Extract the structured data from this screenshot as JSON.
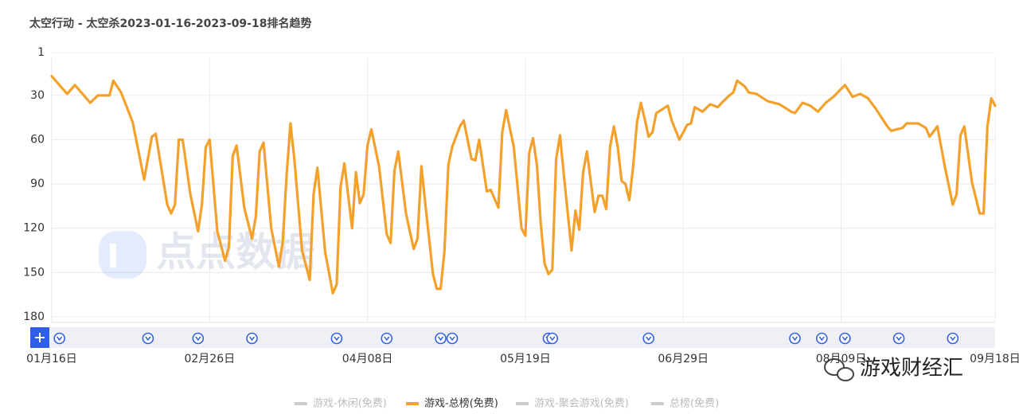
{
  "chart_data": {
    "type": "line",
    "title": "太空行动 - 太空杀2023-01-16-2023-09-18排名趋势",
    "x": [
      "2023-01-16",
      "2023-01-20",
      "2023-01-22",
      "2023-01-26",
      "2023-01-28",
      "2023-01-31",
      "2023-02-01",
      "2023-02-03",
      "2023-02-06",
      "2023-02-09",
      "2023-02-11",
      "2023-02-12",
      "2023-02-15",
      "2023-02-16",
      "2023-02-17",
      "2023-02-18",
      "2023-02-19",
      "2023-02-21",
      "2023-02-23",
      "2023-02-24",
      "2023-02-25",
      "2023-02-26",
      "2023-02-28",
      "2023-03-02",
      "2023-03-03",
      "2023-03-04",
      "2023-03-05",
      "2023-03-07",
      "2023-03-09",
      "2023-03-10",
      "2023-03-11",
      "2023-03-12",
      "2023-03-14",
      "2023-03-16",
      "2023-03-17",
      "2023-03-18",
      "2023-03-19",
      "2023-03-20",
      "2023-03-22",
      "2023-03-24",
      "2023-03-25",
      "2023-03-26",
      "2023-03-28",
      "2023-03-30",
      "2023-03-31",
      "2023-04-01",
      "2023-04-02",
      "2023-04-04",
      "2023-04-05",
      "2023-04-06",
      "2023-04-07",
      "2023-04-08",
      "2023-04-09",
      "2023-04-11",
      "2023-04-13",
      "2023-04-14",
      "2023-04-15",
      "2023-04-16",
      "2023-04-18",
      "2023-04-20",
      "2023-04-21",
      "2023-04-22",
      "2023-04-23",
      "2023-04-25",
      "2023-04-26",
      "2023-04-27",
      "2023-04-28",
      "2023-04-29",
      "2023-04-30",
      "2023-05-02",
      "2023-05-03",
      "2023-05-05",
      "2023-05-06",
      "2023-05-07",
      "2023-05-09",
      "2023-05-10",
      "2023-05-12",
      "2023-05-13",
      "2023-05-14",
      "2023-05-16",
      "2023-05-18",
      "2023-05-19",
      "2023-05-20",
      "2023-05-21",
      "2023-05-22",
      "2023-05-23",
      "2023-05-24",
      "2023-05-25",
      "2023-05-26",
      "2023-05-27",
      "2023-05-28",
      "2023-05-29",
      "2023-05-31",
      "2023-06-01",
      "2023-06-02",
      "2023-06-03",
      "2023-06-04",
      "2023-06-06",
      "2023-06-07",
      "2023-06-08",
      "2023-06-09",
      "2023-06-10",
      "2023-06-11",
      "2023-06-12",
      "2023-06-13",
      "2023-06-14",
      "2023-06-15",
      "2023-06-16",
      "2023-06-17",
      "2023-06-18",
      "2023-06-19",
      "2023-06-20",
      "2023-06-21",
      "2023-06-22",
      "2023-06-25",
      "2023-06-26",
      "2023-06-28",
      "2023-06-30",
      "2023-07-01",
      "2023-07-02",
      "2023-07-04",
      "2023-07-06",
      "2023-07-08",
      "2023-07-09",
      "2023-07-11",
      "2023-07-12",
      "2023-07-13",
      "2023-07-15",
      "2023-07-16",
      "2023-07-18",
      "2023-07-21",
      "2023-07-24",
      "2023-07-27",
      "2023-07-28",
      "2023-07-30",
      "2023-08-01",
      "2023-08-03",
      "2023-08-05",
      "2023-08-07",
      "2023-08-10",
      "2023-08-12",
      "2023-08-14",
      "2023-08-16",
      "2023-08-18",
      "2023-08-21",
      "2023-08-22",
      "2023-08-25",
      "2023-08-26",
      "2023-08-29",
      "2023-08-31",
      "2023-09-01",
      "2023-09-03",
      "2023-09-05",
      "2023-09-07",
      "2023-09-08",
      "2023-09-09",
      "2023-09-10",
      "2023-09-12",
      "2023-09-14",
      "2023-09-15",
      "2023-09-16",
      "2023-09-17",
      "2023-09-18"
    ],
    "series": [
      {
        "name": "游戏-休闲(免费)",
        "color": "#cccccc",
        "visible": false
      },
      {
        "name": "游戏-总榜(免费)",
        "color": "#f4a12c",
        "visible": true,
        "values": [
          17,
          29,
          23,
          35,
          30,
          30,
          20,
          28,
          48,
          87,
          58,
          56,
          104,
          110,
          104,
          60,
          60,
          97,
          122,
          104,
          65,
          60,
          122,
          142,
          133,
          71,
          64,
          106,
          127,
          112,
          68,
          62,
          120,
          146,
          129,
          84,
          49,
          73,
          135,
          155,
          97,
          79,
          136,
          164,
          158,
          92,
          76,
          120,
          82,
          103,
          97,
          64,
          53,
          78,
          124,
          130,
          81,
          68,
          110,
          134,
          127,
          78,
          103,
          151,
          161,
          161,
          135,
          77,
          65,
          51,
          47,
          73,
          74,
          60,
          95,
          94,
          106,
          55,
          40,
          65,
          120,
          125,
          69,
          59,
          77,
          117,
          144,
          151,
          148,
          73,
          57,
          84,
          135,
          108,
          121,
          82,
          68,
          109,
          98,
          98,
          107,
          65,
          51,
          65,
          88,
          90,
          101,
          78,
          48,
          35,
          46,
          58,
          55,
          42,
          37,
          47,
          60,
          50,
          49,
          38,
          41,
          36,
          38,
          35,
          30,
          28,
          20,
          24,
          28,
          29,
          34,
          36,
          41,
          42,
          35,
          37,
          41,
          35,
          31,
          23,
          31,
          29,
          32,
          39,
          51,
          54,
          52,
          49,
          49,
          52,
          58,
          51,
          79,
          104,
          97,
          57,
          51,
          89,
          110,
          110,
          51,
          32,
          37
        ]
      },
      {
        "name": "游戏-聚会游戏(免费)",
        "color": "#cccccc",
        "visible": false
      },
      {
        "name": "总榜(免费)",
        "color": "#cccccc",
        "visible": false
      }
    ],
    "ylim": [
      1,
      180
    ],
    "y_reversed": true,
    "yticks": [
      1,
      30,
      60,
      90,
      120,
      150,
      180
    ],
    "xlim": [
      "2023-01-16",
      "2023-09-18"
    ],
    "xticks": [
      {
        "value": "2023-01-16",
        "label": "01月16日"
      },
      {
        "value": "2023-02-26",
        "label": "02月26日"
      },
      {
        "value": "2023-04-08",
        "label": "04月08日"
      },
      {
        "value": "2023-05-19",
        "label": "05月19日"
      },
      {
        "value": "2023-06-29",
        "label": "06月29日"
      },
      {
        "value": "2023-08-09",
        "label": "08月09日"
      },
      {
        "value": "2023-09-18",
        "label": "09月18日"
      }
    ],
    "grid": true,
    "legend_position": "bottom",
    "event_dates": [
      "2023-01-18",
      "2023-02-10",
      "2023-02-23",
      "2023-03-09",
      "2023-03-31",
      "2023-04-13",
      "2023-04-27",
      "2023-04-30",
      "2023-05-25",
      "2023-05-26",
      "2023-06-20",
      "2023-07-28",
      "2023-08-04",
      "2023-08-10",
      "2023-08-24",
      "2023-09-07"
    ]
  },
  "watermarks": {
    "logo": "点点数据",
    "account": "游戏财经汇"
  }
}
